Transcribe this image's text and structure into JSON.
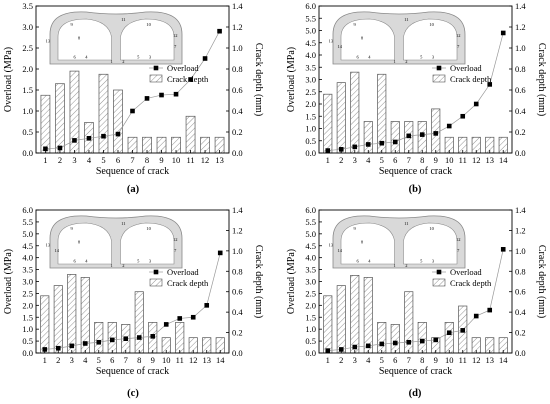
{
  "chart_data": [
    {
      "type": "bar",
      "panel_label": "(a)",
      "xlabel": "Sequence of crack",
      "ylabel_left": "Overload (MPa)",
      "ylabel_right": "Crack depth (mm)",
      "categories": [
        "1",
        "2",
        "3",
        "4",
        "5",
        "6",
        "7",
        "8",
        "9",
        "10",
        "11",
        "12",
        "13"
      ],
      "left_ylim": [
        0,
        3.5
      ],
      "left_yticks": [
        "0.0",
        "0.5",
        "1.0",
        "1.5",
        "2.0",
        "2.5",
        "3.0",
        "3.5"
      ],
      "right_ylim": [
        0,
        1.4
      ],
      "right_yticks": [
        "0.0",
        "0.2",
        "0.4",
        "0.6",
        "0.8",
        "1.0",
        "1.2",
        "1.4"
      ],
      "legend": [
        "Overload",
        "Crack depth"
      ],
      "series": [
        {
          "name": "Overload",
          "kind": "line-marker",
          "axis": "left",
          "values": [
            0.1,
            0.12,
            0.3,
            0.35,
            0.4,
            0.45,
            1.0,
            1.3,
            1.38,
            1.4,
            1.75,
            2.25,
            2.9
          ]
        },
        {
          "name": "Crack depth",
          "kind": "bar",
          "axis": "right",
          "values": [
            0.55,
            0.66,
            0.78,
            0.29,
            0.75,
            0.6,
            0.15,
            0.15,
            0.15,
            0.15,
            0.35,
            0.15,
            0.15
          ]
        }
      ],
      "tunnel_labels": [
        "1",
        "2",
        "3",
        "4",
        "5",
        "6",
        "7",
        "8",
        "9",
        "10",
        "11",
        "12",
        "13"
      ]
    },
    {
      "type": "bar",
      "panel_label": "(b)",
      "xlabel": "Sequence of crack",
      "ylabel_left": "Overload (MPa)",
      "ylabel_right": "Crack depth (mm)",
      "categories": [
        "1",
        "2",
        "3",
        "4",
        "5",
        "6",
        "7",
        "8",
        "9",
        "10",
        "11",
        "12",
        "13",
        "14"
      ],
      "left_ylim": [
        0,
        6.0
      ],
      "left_yticks": [
        "0.0",
        "0.5",
        "1.0",
        "1.5",
        "2.0",
        "2.5",
        "3.0",
        "3.5",
        "4.0",
        "4.5",
        "5.0",
        "5.5",
        "6.0"
      ],
      "right_ylim": [
        0,
        1.4
      ],
      "right_yticks": [
        "0.0",
        "0.2",
        "0.4",
        "0.6",
        "0.8",
        "1.0",
        "1.2",
        "1.4"
      ],
      "legend": [
        "Overload",
        "Crack depth"
      ],
      "series": [
        {
          "name": "Overload",
          "kind": "line-marker",
          "axis": "left",
          "values": [
            0.1,
            0.15,
            0.25,
            0.35,
            0.4,
            0.45,
            0.7,
            0.75,
            0.8,
            1.1,
            1.5,
            2.0,
            2.8,
            4.9
          ]
        },
        {
          "name": "Crack depth",
          "kind": "bar",
          "axis": "right",
          "values": [
            0.56,
            0.67,
            0.77,
            0.3,
            0.75,
            0.3,
            0.3,
            0.3,
            0.42,
            0.15,
            0.15,
            0.15,
            0.15,
            0.15
          ]
        }
      ],
      "tunnel_labels": [
        "1",
        "2",
        "3",
        "4",
        "5",
        "6",
        "7",
        "8",
        "9",
        "10",
        "11",
        "12",
        "13",
        "14"
      ]
    },
    {
      "type": "bar",
      "panel_label": "(c)",
      "xlabel": "Sequence of crack",
      "ylabel_left": "Overload (MPa)",
      "ylabel_right": "Crack depth (mm)",
      "categories": [
        "1",
        "2",
        "3",
        "4",
        "5",
        "6",
        "7",
        "8",
        "9",
        "10",
        "11",
        "12",
        "13",
        "14"
      ],
      "left_ylim": [
        0,
        6.0
      ],
      "left_yticks": [
        "0.0",
        "0.5",
        "1.0",
        "1.5",
        "2.0",
        "2.5",
        "3.0",
        "3.5",
        "4.0",
        "4.5",
        "5.0",
        "5.5",
        "6.0"
      ],
      "right_ylim": [
        0,
        1.4
      ],
      "right_yticks": [
        "0.0",
        "0.2",
        "0.4",
        "0.6",
        "0.8",
        "1.0",
        "1.2",
        "1.4"
      ],
      "legend": [
        "Overload",
        "Crack depth"
      ],
      "series": [
        {
          "name": "Overload",
          "kind": "line-marker",
          "axis": "left",
          "values": [
            0.15,
            0.2,
            0.3,
            0.4,
            0.45,
            0.55,
            0.6,
            0.65,
            0.7,
            1.2,
            1.45,
            1.5,
            2.0,
            4.2
          ]
        },
        {
          "name": "Crack depth",
          "kind": "bar",
          "axis": "right",
          "values": [
            0.56,
            0.66,
            0.77,
            0.74,
            0.3,
            0.3,
            0.28,
            0.6,
            0.3,
            0.15,
            0.3,
            0.15,
            0.15,
            0.15
          ]
        }
      ],
      "tunnel_labels": [
        "1",
        "2",
        "3",
        "4",
        "5",
        "6",
        "7",
        "8",
        "9",
        "10",
        "11",
        "12",
        "13",
        "14"
      ]
    },
    {
      "type": "bar",
      "panel_label": "(d)",
      "xlabel": "Sequence of crack",
      "ylabel_left": "Overload (MPa)",
      "ylabel_right": "Crack depth (mm)",
      "categories": [
        "1",
        "2",
        "3",
        "4",
        "5",
        "6",
        "7",
        "8",
        "9",
        "10",
        "11",
        "12",
        "13",
        "14"
      ],
      "left_ylim": [
        0,
        6.0
      ],
      "left_yticks": [
        "0.0",
        "0.5",
        "1.0",
        "1.5",
        "2.0",
        "2.5",
        "3.0",
        "3.5",
        "4.0",
        "4.5",
        "5.0",
        "5.5",
        "6.0"
      ],
      "right_ylim": [
        0,
        1.4
      ],
      "right_yticks": [
        "0.0",
        "0.2",
        "0.4",
        "0.6",
        "0.8",
        "1.0",
        "1.2",
        "1.4"
      ],
      "legend": [
        "Overload",
        "Crack depth"
      ],
      "series": [
        {
          "name": "Overload",
          "kind": "line-marker",
          "axis": "left",
          "values": [
            0.1,
            0.15,
            0.25,
            0.3,
            0.38,
            0.42,
            0.45,
            0.5,
            0.55,
            0.85,
            0.95,
            1.55,
            1.8,
            4.35
          ]
        },
        {
          "name": "Crack depth",
          "kind": "bar",
          "axis": "right",
          "values": [
            0.56,
            0.66,
            0.76,
            0.74,
            0.3,
            0.28,
            0.6,
            0.3,
            0.15,
            0.3,
            0.46,
            0.15,
            0.15,
            0.15
          ]
        }
      ],
      "tunnel_labels": [
        "1",
        "2",
        "3",
        "4",
        "5",
        "6",
        "7",
        "8",
        "9",
        "10",
        "11",
        "12",
        "13",
        "14"
      ]
    }
  ]
}
